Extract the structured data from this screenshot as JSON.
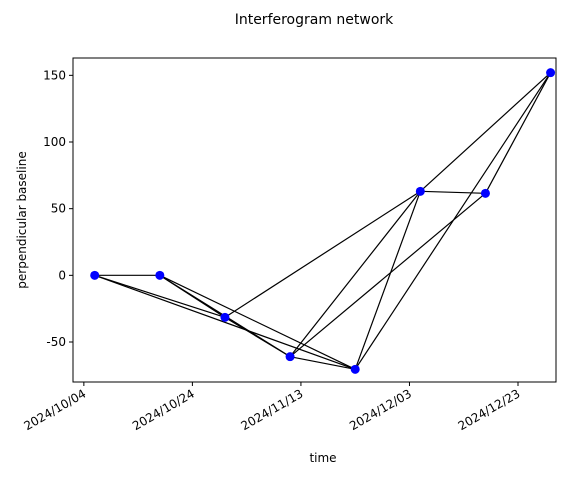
{
  "chart_data": {
    "type": "network",
    "title": "Interferogram network",
    "x_label": "time",
    "y_label": "perpendicular baseline",
    "x": [
      "2024-10-06",
      "2024-10-18",
      "2024-10-30",
      "2024-11-11",
      "2024-11-23",
      "2024-12-05",
      "2024-12-17",
      "2024-12-29"
    ],
    "series": [
      {
        "color": "#0000ff",
        "values": [
          0,
          0,
          -31.5,
          -61,
          -70.5,
          63,
          61.5,
          152
        ]
      }
    ],
    "edges": [
      [
        0,
        1
      ],
      [
        0,
        2
      ],
      [
        0,
        4
      ],
      [
        1,
        2
      ],
      [
        1,
        3
      ],
      [
        1,
        4
      ],
      [
        2,
        3
      ],
      [
        2,
        5
      ],
      [
        3,
        4
      ],
      [
        3,
        5
      ],
      [
        3,
        6
      ],
      [
        4,
        5
      ],
      [
        4,
        7
      ],
      [
        5,
        6
      ],
      [
        5,
        7
      ],
      [
        6,
        7
      ]
    ],
    "edge_color": "#000000",
    "xlim": [
      "2024-10-02",
      "2024-12-30"
    ],
    "xticks": [
      {
        "value": "2024-10-04",
        "label": "2024/10/04"
      },
      {
        "value": "2024-10-24",
        "label": "2024/10/24"
      },
      {
        "value": "2024-11-13",
        "label": "2024/11/13"
      },
      {
        "value": "2024-12-03",
        "label": "2024/12/03"
      },
      {
        "value": "2024-12-23",
        "label": "2024/12/23"
      }
    ],
    "ylim": [
      -80,
      163
    ],
    "yticks": [
      -50,
      0,
      50,
      100,
      150
    ],
    "grid": false
  }
}
